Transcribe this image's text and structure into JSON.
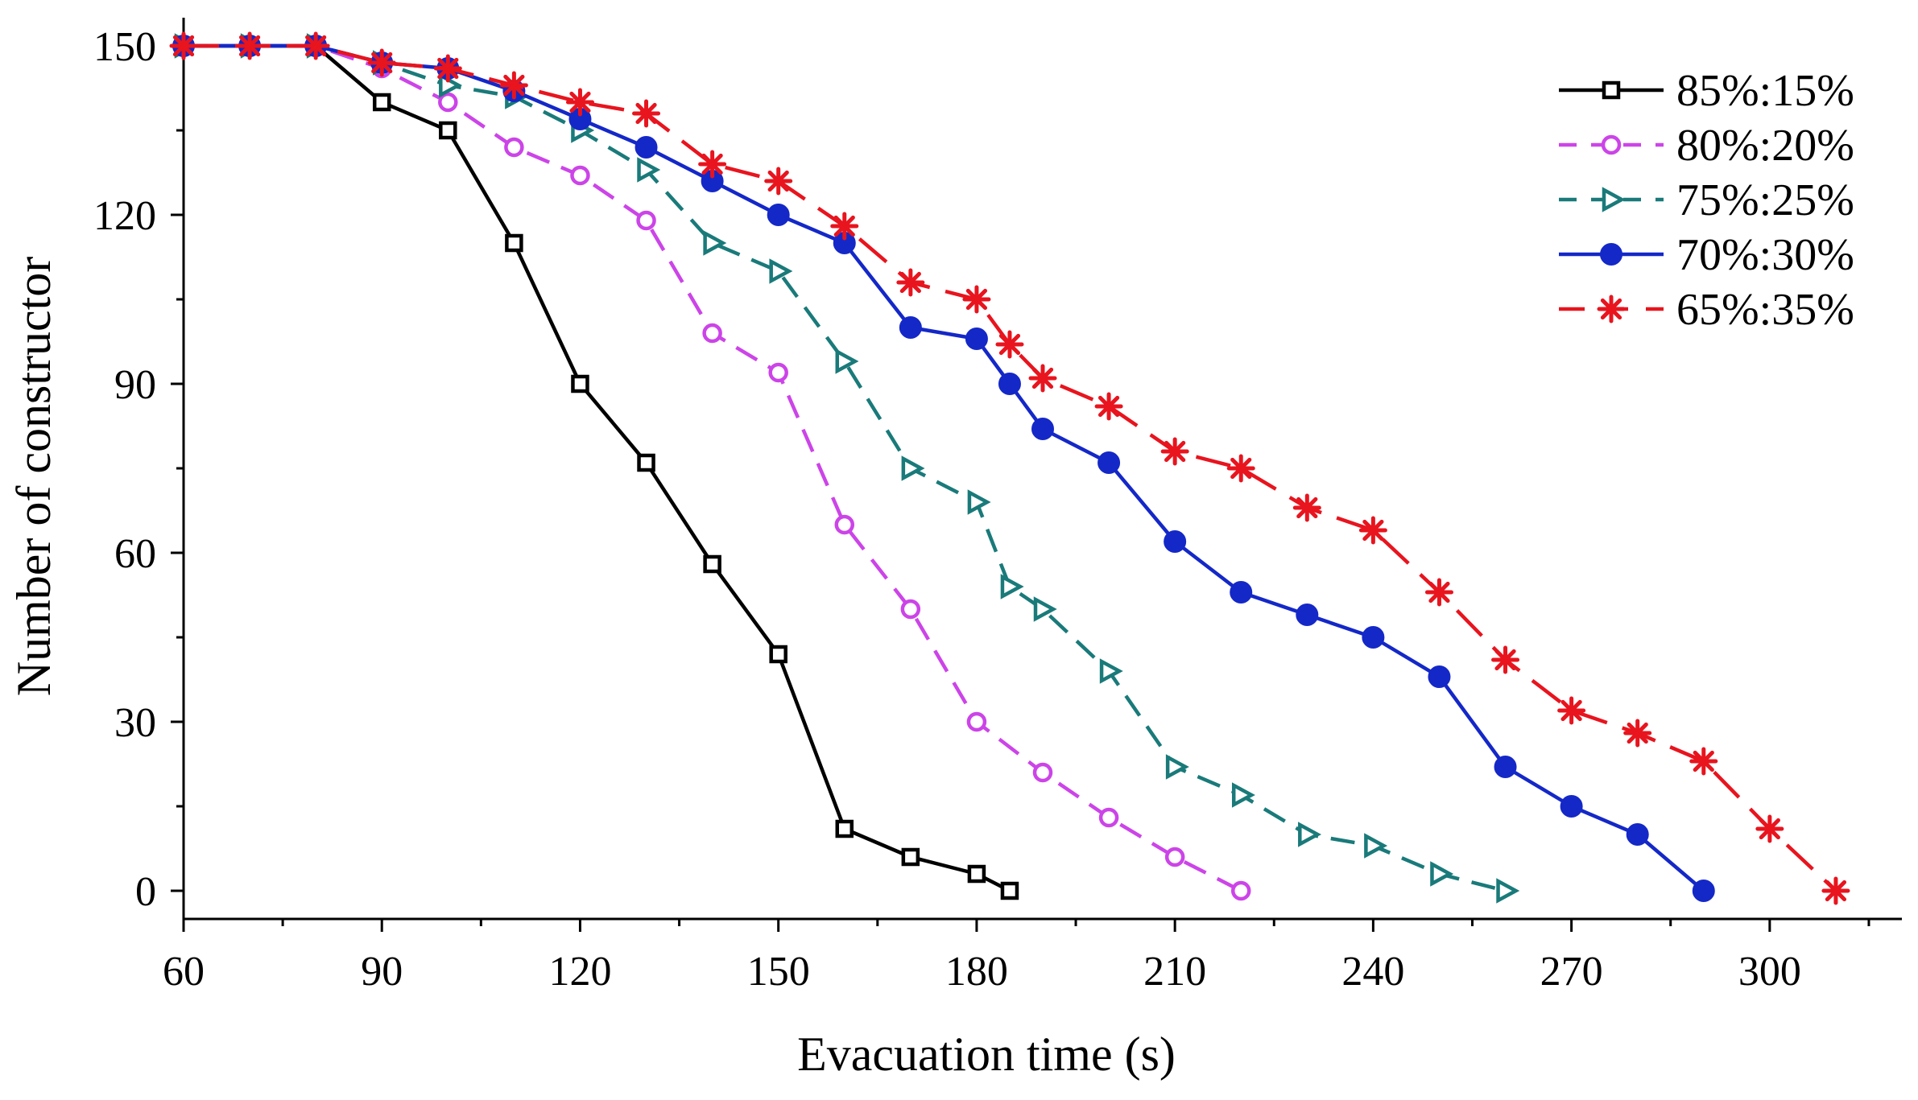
{
  "chart_data": {
    "type": "line",
    "title": "",
    "xlabel": "Evacuation time (s)",
    "ylabel": "Number of constructor",
    "xlim": [
      60,
      320
    ],
    "ylim": [
      -5,
      155
    ],
    "xticks": [
      60,
      90,
      120,
      150,
      180,
      210,
      240,
      270,
      300
    ],
    "yticks": [
      0,
      30,
      60,
      90,
      120,
      150
    ],
    "xtick_labels": [
      "60",
      "90",
      "120",
      "150",
      "180",
      "210",
      "240",
      "270",
      "300"
    ],
    "ytick_labels": [
      "0",
      "30",
      "60",
      "90",
      "120",
      "150"
    ],
    "grid": false,
    "legend_position": "top-right",
    "series": [
      {
        "name": "85%:15%",
        "color": "#000000",
        "dash": "solid",
        "marker": "square-open",
        "x": [
          60,
          70,
          80,
          90,
          100,
          110,
          120,
          130,
          140,
          150,
          160,
          170,
          180,
          185
        ],
        "y": [
          150,
          150,
          150,
          140,
          135,
          115,
          90,
          76,
          58,
          42,
          11,
          6,
          3,
          0
        ]
      },
      {
        "name": "80%:20%",
        "color": "#cc44e8",
        "dash": "dashed",
        "marker": "circle-open",
        "x": [
          60,
          70,
          80,
          90,
          100,
          110,
          120,
          130,
          140,
          150,
          160,
          170,
          180,
          190,
          200,
          210,
          220
        ],
        "y": [
          150,
          150,
          150,
          146,
          140,
          132,
          127,
          119,
          99,
          92,
          65,
          50,
          30,
          21,
          13,
          6,
          0
        ]
      },
      {
        "name": "75%:25%",
        "color": "#1a7a7a",
        "dash": "dashed",
        "marker": "triangle-right-open",
        "x": [
          60,
          70,
          80,
          90,
          100,
          110,
          120,
          130,
          140,
          150,
          160,
          170,
          180,
          185,
          190,
          200,
          210,
          220,
          230,
          240,
          250,
          260
        ],
        "y": [
          150,
          150,
          150,
          147,
          143,
          141,
          135,
          128,
          115,
          110,
          94,
          75,
          69,
          54,
          50,
          39,
          22,
          17,
          10,
          8,
          3,
          0
        ]
      },
      {
        "name": "70%:30%",
        "color": "#1428c8",
        "dash": "solid",
        "marker": "circle-filled",
        "x": [
          60,
          70,
          80,
          90,
          100,
          110,
          120,
          130,
          140,
          150,
          160,
          170,
          180,
          185,
          190,
          200,
          210,
          220,
          230,
          240,
          250,
          260,
          270,
          280,
          290
        ],
        "y": [
          150,
          150,
          150,
          147,
          146,
          142,
          137,
          132,
          126,
          120,
          115,
          100,
          98,
          90,
          82,
          76,
          62,
          53,
          49,
          45,
          38,
          22,
          15,
          10,
          0
        ]
      },
      {
        "name": "65%:35%",
        "color": "#e8141e",
        "dash": "longdash",
        "marker": "asterisk",
        "x": [
          60,
          70,
          80,
          90,
          100,
          110,
          120,
          130,
          140,
          150,
          160,
          170,
          180,
          185,
          190,
          200,
          210,
          220,
          230,
          240,
          250,
          260,
          270,
          280,
          290,
          300,
          310
        ],
        "y": [
          150,
          150,
          150,
          147,
          146,
          143,
          140,
          138,
          129,
          126,
          118,
          108,
          105,
          97,
          91,
          86,
          78,
          75,
          68,
          64,
          53,
          41,
          32,
          28,
          23,
          11,
          0
        ]
      }
    ]
  }
}
